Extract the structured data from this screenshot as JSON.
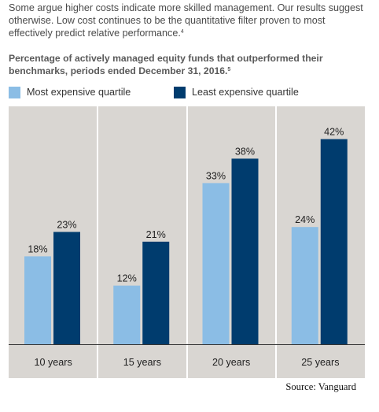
{
  "intro": {
    "text": "Some argue higher costs indicate more skilled management. Our results suggest otherwise. Low cost continues to be the quantitative filter proven to most effectively predict relative performance.",
    "footnote": "4"
  },
  "chart_data": {
    "type": "bar",
    "title": "Percentage of actively managed equity funds that outperformed their benchmarks, periods ended December 31, 2016.",
    "title_footnote": "5",
    "categories": [
      "10 years",
      "15 years",
      "20 years",
      "25 years"
    ],
    "series": [
      {
        "name": "Most expensive quartile",
        "values": [
          18,
          12,
          33,
          24
        ],
        "labels": [
          "18%",
          "12%",
          "33%",
          "24%"
        ],
        "color": "#8bbde5"
      },
      {
        "name": "Least expensive quartile",
        "values": [
          23,
          21,
          38,
          42
        ],
        "labels": [
          "23%",
          "21%",
          "38%",
          "42%"
        ],
        "color": "#003c6e"
      }
    ],
    "ylim": [
      0,
      50
    ],
    "grid": false,
    "legend_position": "top-left",
    "background": "#d9d6d2",
    "divider_color": "#ffffff",
    "axis_line_color": "#333333"
  },
  "source": "Source: Vanguard"
}
